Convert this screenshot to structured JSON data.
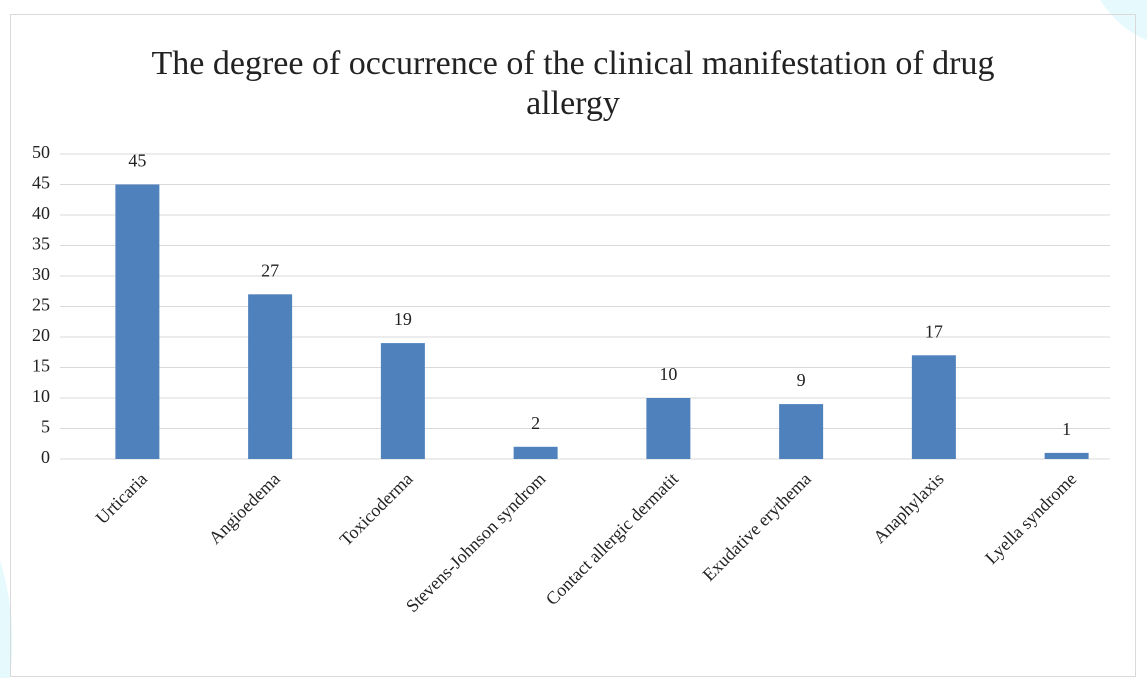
{
  "chart_data": {
    "type": "bar",
    "title": "The degree of occurrence of the clinical manifestation of drug allergy",
    "categories": [
      "Urticaria",
      "Angioedema",
      "Toxicoderma",
      "Stevens-Johnson syndrom",
      "Contact allergic dermatit",
      "Exudative erythema",
      "Anaphylaxis",
      "Lyella syndrome"
    ],
    "values": [
      45,
      27,
      19,
      2,
      10,
      9,
      17,
      1
    ],
    "color": "#4f81bd",
    "ylim": [
      0,
      50
    ],
    "yticks": [
      0,
      5,
      10,
      15,
      20,
      25,
      30,
      35,
      40,
      45,
      50
    ],
    "grid": true
  }
}
